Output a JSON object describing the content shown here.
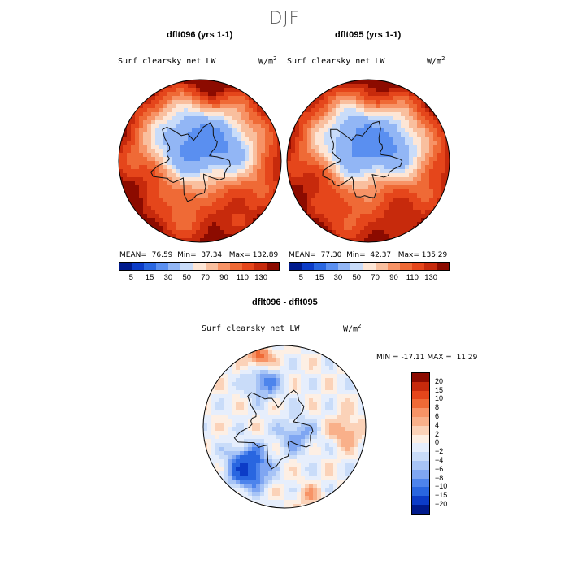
{
  "page": {
    "season": "DJF"
  },
  "chart_data": [
    {
      "type": "heatmap",
      "title": "dflt096 (yrs 1-1)",
      "variable": "Surf clearsky net LW",
      "units": "W/m",
      "units_exp": "2",
      "stats": {
        "mean_label": "MEAN=",
        "mean": "76.59",
        "min_label": "Min=",
        "min": "37.34",
        "max_label": "Max=",
        "max": "132.89"
      },
      "colorbar": {
        "ticks": [
          "5",
          "15",
          "30",
          "50",
          "70",
          "90",
          "110",
          "130"
        ],
        "colors": [
          "#001a8c",
          "#0c3cc7",
          "#2966e0",
          "#5a8ff0",
          "#92b6f5",
          "#c9dcf9",
          "#fde6d6",
          "#f9bf9e",
          "#f79366",
          "#ef6a36",
          "#e5461b",
          "#c72a0c",
          "#8c0b00"
        ]
      },
      "projection": "north polar stereographic"
    },
    {
      "type": "heatmap",
      "title": "dflt095 (yrs 1-1)",
      "variable": "Surf clearsky net LW",
      "units": "W/m",
      "units_exp": "2",
      "stats": {
        "mean_label": "MEAN=",
        "mean": "77.30",
        "min_label": "Min=",
        "min": "42.37",
        "max_label": "Max=",
        "max": "135.29"
      },
      "colorbar": {
        "ticks": [
          "5",
          "15",
          "30",
          "50",
          "70",
          "90",
          "110",
          "130"
        ],
        "colors": [
          "#001a8c",
          "#0c3cc7",
          "#2966e0",
          "#5a8ff0",
          "#92b6f5",
          "#c9dcf9",
          "#fde6d6",
          "#f9bf9e",
          "#f79366",
          "#ef6a36",
          "#e5461b",
          "#c72a0c",
          "#8c0b00"
        ]
      },
      "projection": "north polar stereographic"
    },
    {
      "type": "heatmap",
      "title": "dflt096 - dflt095",
      "variable": "Surf clearsky net LW",
      "units": "W/m",
      "units_exp": "2",
      "stats": {
        "min_label": "MIN =",
        "min": "-17.11",
        "max_label": "MAX =",
        "max": "11.29"
      },
      "colorbar": {
        "ticks": [
          "20",
          "15",
          "10",
          "8",
          "6",
          "4",
          "2",
          "0",
          "−2",
          "−4",
          "−6",
          "−8",
          "−10",
          "−15",
          "−20"
        ],
        "colors": [
          "#8c0b00",
          "#c72a0c",
          "#e5461b",
          "#ef6a36",
          "#f79366",
          "#f9b08a",
          "#fbd2b8",
          "#fdefe4",
          "#e6eefc",
          "#c9dcf9",
          "#a7c4f6",
          "#7fa6f2",
          "#4d84ec",
          "#2966e0",
          "#0c3cc7",
          "#001a8c"
        ]
      },
      "projection": "north polar stereographic"
    }
  ]
}
